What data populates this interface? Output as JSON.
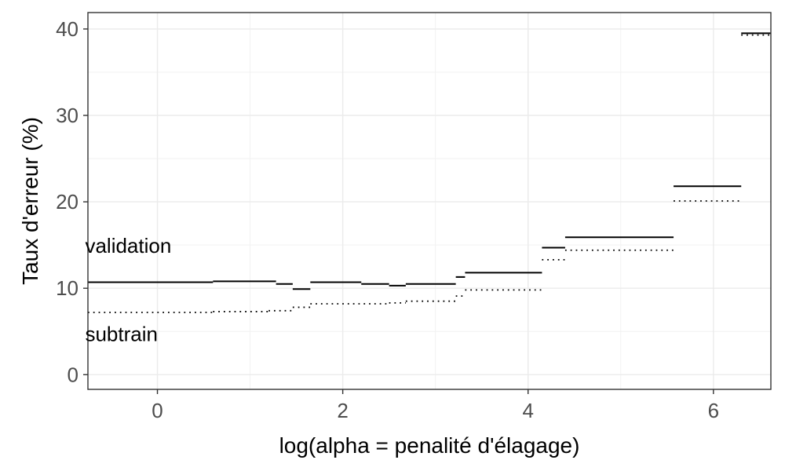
{
  "chart_data": {
    "type": "line",
    "title": "",
    "xlabel": "log(alpha = penalité d'élagage)",
    "ylabel": "Taux d'erreur (%)",
    "xlim": [
      -0.75,
      6.62
    ],
    "ylim": [
      -1.7,
      41.9
    ],
    "x_ticks": [
      0,
      2,
      4,
      6
    ],
    "y_ticks": [
      0,
      10,
      20,
      30,
      40
    ],
    "grid": true,
    "legend": "none",
    "annotations": [
      {
        "text": "validation",
        "x": -0.78,
        "y": 14.9
      },
      {
        "text": "subtrain",
        "x": -0.78,
        "y": 4.7
      }
    ],
    "series": [
      {
        "style": "solid",
        "segments": [
          {
            "x0": -0.75,
            "x1": 0.6,
            "y": 10.7
          },
          {
            "x0": 0.6,
            "x1": 1.28,
            "y": 10.8
          },
          {
            "x0": 1.28,
            "x1": 1.46,
            "y": 10.5
          },
          {
            "x0": 1.46,
            "x1": 1.65,
            "y": 9.9
          },
          {
            "x0": 1.65,
            "x1": 2.2,
            "y": 10.7
          },
          {
            "x0": 2.2,
            "x1": 2.5,
            "y": 10.5
          },
          {
            "x0": 2.5,
            "x1": 2.68,
            "y": 10.3
          },
          {
            "x0": 2.68,
            "x1": 3.22,
            "y": 10.5
          },
          {
            "x0": 3.22,
            "x1": 3.32,
            "y": 11.3
          },
          {
            "x0": 3.32,
            "x1": 4.15,
            "y": 11.8
          },
          {
            "x0": 4.15,
            "x1": 4.4,
            "y": 14.7
          },
          {
            "x0": 4.4,
            "x1": 5.57,
            "y": 15.9
          },
          {
            "x0": 5.57,
            "x1": 6.3,
            "y": 21.8
          },
          {
            "x0": 6.3,
            "x1": 6.62,
            "y": 39.5
          }
        ]
      },
      {
        "style": "dotted",
        "segments": [
          {
            "x0": -0.75,
            "x1": 0.6,
            "y": 7.2
          },
          {
            "x0": 0.6,
            "x1": 1.2,
            "y": 7.3
          },
          {
            "x0": 1.2,
            "x1": 1.46,
            "y": 7.4
          },
          {
            "x0": 1.46,
            "x1": 1.65,
            "y": 7.8
          },
          {
            "x0": 1.65,
            "x1": 2.5,
            "y": 8.2
          },
          {
            "x0": 2.5,
            "x1": 2.68,
            "y": 8.3
          },
          {
            "x0": 2.68,
            "x1": 3.22,
            "y": 8.5
          },
          {
            "x0": 3.22,
            "x1": 3.32,
            "y": 9.1
          },
          {
            "x0": 3.32,
            "x1": 4.15,
            "y": 9.8
          },
          {
            "x0": 4.15,
            "x1": 4.4,
            "y": 13.3
          },
          {
            "x0": 4.4,
            "x1": 5.57,
            "y": 14.4
          },
          {
            "x0": 5.57,
            "x1": 6.3,
            "y": 20.1
          },
          {
            "x0": 6.3,
            "x1": 6.62,
            "y": 39.3
          }
        ]
      }
    ]
  }
}
